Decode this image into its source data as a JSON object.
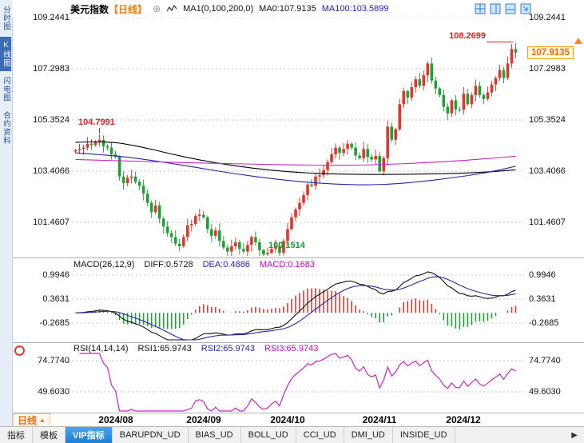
{
  "sidebar": {
    "items": [
      {
        "label": "分时图",
        "selected": false
      },
      {
        "label": "K线图",
        "selected": true
      },
      {
        "label": "闪电图",
        "selected": false
      },
      {
        "label": "合约资料",
        "selected": false
      }
    ]
  },
  "header": {
    "title": "美元指数",
    "period_tag": "【日线】",
    "add_icon": "⊕",
    "ma_settings": "MA1(0,100,200,0)",
    "ma0": "MA0:107.9135",
    "ma100": "MA100:103.5899"
  },
  "price_tag": {
    "value": "107.9135"
  },
  "annotations": {
    "left_high": "104.7991",
    "bottom_low": "100.1514",
    "right_high": "108.2699"
  },
  "macd_legend": {
    "name": "MACD(26,12,9)",
    "diff": "DIFF:0.5728",
    "dea": "DEA:0.4886",
    "macd": "MACD:0.1683"
  },
  "rsi_legend": {
    "name": "RSI(14,14,14)",
    "rsi1": "RSI1:65.9743",
    "rsi2": "RSI2:65.9743",
    "rsi3": "RSI3:65.9743"
  },
  "period_button": {
    "label": "日线",
    "arrow": "▲"
  },
  "tabs": [
    "指标",
    "模板",
    "VIP指标",
    "BARUPDN_UD",
    "BIAS_UD",
    "BOLL_UD",
    "CCI_UD",
    "DMI_UD",
    "INSIDE_UD"
  ],
  "tabbar": {
    "selected": "VIP指标",
    "more_icon": "▶"
  },
  "colors": {
    "up": "#dc3a30",
    "down": "#23a035",
    "accent_orange": "#ff6600",
    "selected_blue": "#1b7fd4",
    "grid": "#b9bfc9"
  },
  "chart_data": {
    "type": "candlestick",
    "title": "美元指数 日线 (US Dollar Index, daily)",
    "price_axis_labels": [
      "109.2441",
      "107.2983",
      "105.3524",
      "103.4066",
      "101.4607"
    ],
    "macd_axis_labels": [
      "0.9946",
      "0.3631",
      "-0.2685"
    ],
    "rsi_axis_labels": [
      "74.7740",
      "49.6030"
    ],
    "x_labels": [
      {
        "label": "2024/08",
        "index": 10
      },
      {
        "label": "2024/09",
        "index": 32
      },
      {
        "label": "2024/10",
        "index": 53
      },
      {
        "label": "2024/11",
        "index": 76
      },
      {
        "label": "2024/12",
        "index": 97
      }
    ],
    "key_points": {
      "period_high": 108.2699,
      "period_low": 100.1514,
      "early_high": 104.7991,
      "last_close": 107.9135
    },
    "closes": [
      104.2,
      104.25,
      104.3,
      104.45,
      104.4,
      104.5,
      104.6,
      104.35,
      104.3,
      104.05,
      103.95,
      103.2,
      102.95,
      103.15,
      103.2,
      103.0,
      102.85,
      102.55,
      102.2,
      101.85,
      102.1,
      101.6,
      101.3,
      101.05,
      100.9,
      100.65,
      100.55,
      100.9,
      101.35,
      101.4,
      101.7,
      101.75,
      101.65,
      101.2,
      100.95,
      101.15,
      100.75,
      100.5,
      100.35,
      100.55,
      100.7,
      100.45,
      100.35,
      100.6,
      100.9,
      100.7,
      100.4,
      100.25,
      100.3,
      100.45,
      100.55,
      100.3,
      100.75,
      101.2,
      101.65,
      101.95,
      102.2,
      102.5,
      102.9,
      102.85,
      103.2,
      103.25,
      103.45,
      103.75,
      104.05,
      104.3,
      104.1,
      104.25,
      104.45,
      104.3,
      104.0,
      103.9,
      104.25,
      103.95,
      103.85,
      103.98,
      103.4,
      103.9,
      105.1,
      104.6,
      105.0,
      105.95,
      106.45,
      106.2,
      106.6,
      106.9,
      106.65,
      107.05,
      107.5,
      106.85,
      106.55,
      106.3,
      105.85,
      105.6,
      106.1,
      105.75,
      105.74,
      106.35,
      105.95,
      106.3,
      106.65,
      106.3,
      106.15,
      106.4,
      106.7,
      106.95,
      107.25,
      106.95,
      107.5,
      108.05,
      107.9135
    ],
    "overrides": {
      "6": {
        "h": 104.7991
      },
      "47": {
        "l": 100.1514
      },
      "110": {
        "h": 108.2699,
        "l": 107.7
      }
    },
    "ma_lines": [
      {
        "name": "MA-long-black",
        "color": "#000000",
        "points": [
          [
            0,
            104.5
          ],
          [
            8,
            104.55
          ],
          [
            16,
            104.35
          ],
          [
            24,
            104.05
          ],
          [
            32,
            103.8
          ],
          [
            40,
            103.6
          ],
          [
            48,
            103.45
          ],
          [
            56,
            103.35
          ],
          [
            64,
            103.3
          ],
          [
            72,
            103.28
          ],
          [
            80,
            103.28
          ],
          [
            88,
            103.3
          ],
          [
            96,
            103.32
          ],
          [
            104,
            103.38
          ],
          [
            110,
            103.46
          ]
        ]
      },
      {
        "name": "MA100",
        "color": "#2626ad",
        "points": [
          [
            0,
            104.1
          ],
          [
            10,
            104.0
          ],
          [
            20,
            103.8
          ],
          [
            30,
            103.55
          ],
          [
            40,
            103.3
          ],
          [
            50,
            103.1
          ],
          [
            60,
            102.95
          ],
          [
            70,
            102.88
          ],
          [
            78,
            102.9
          ],
          [
            86,
            103.0
          ],
          [
            94,
            103.15
          ],
          [
            102,
            103.32
          ],
          [
            110,
            103.59
          ]
        ]
      },
      {
        "name": "MA200",
        "color": "#cc22cc",
        "points": [
          [
            0,
            103.85
          ],
          [
            12,
            103.8
          ],
          [
            24,
            103.74
          ],
          [
            36,
            103.7
          ],
          [
            48,
            103.66
          ],
          [
            60,
            103.63
          ],
          [
            72,
            103.63
          ],
          [
            84,
            103.7
          ],
          [
            96,
            103.8
          ],
          [
            104,
            103.9
          ],
          [
            110,
            103.97
          ]
        ]
      }
    ],
    "indicators": {
      "macd": {
        "fast": 12,
        "slow": 26,
        "signal": 9,
        "diff": 0.5728,
        "dea": 0.4886,
        "macd": 0.1683
      },
      "rsi": {
        "period": 14,
        "rsi1": 65.9743,
        "rsi2": 65.9743,
        "rsi3": 65.9743
      }
    }
  }
}
